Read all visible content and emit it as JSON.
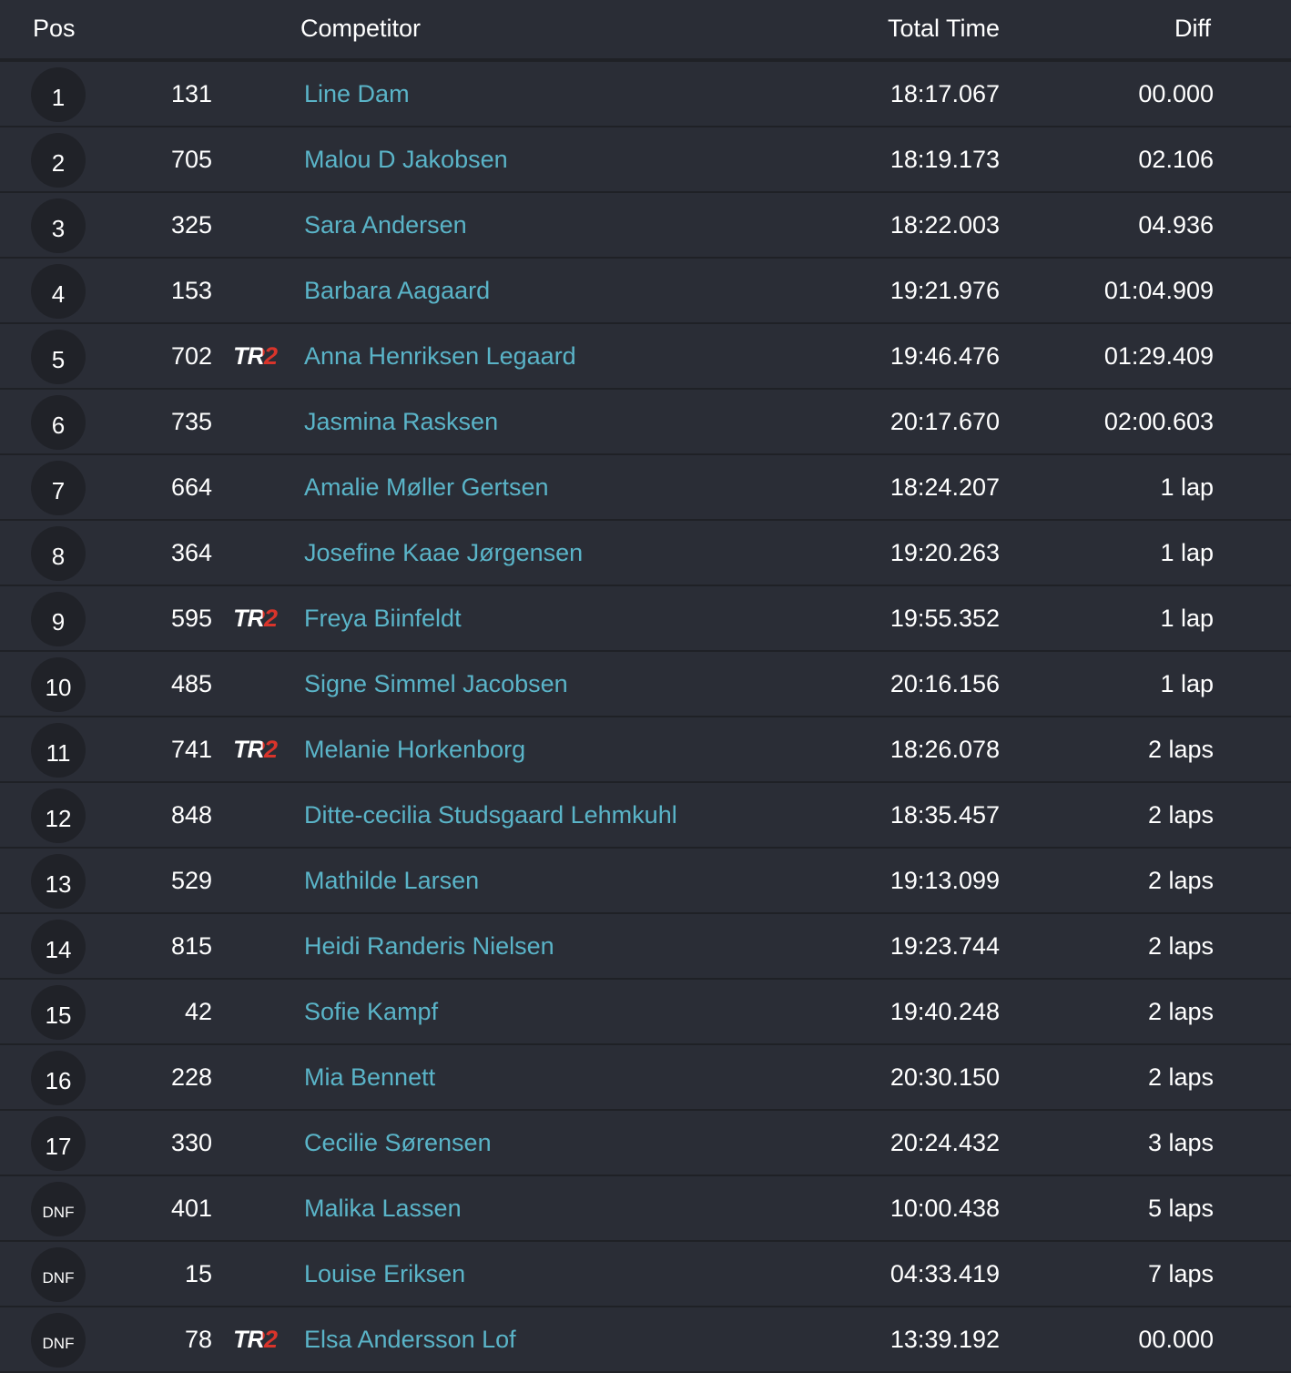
{
  "header": {
    "pos": "Pos",
    "competitor": "Competitor",
    "total_time": "Total Time",
    "diff": "Diff"
  },
  "colors": {
    "background": "#2a2d36",
    "name_link": "#5ab4c8",
    "badge_red": "#d9342b"
  },
  "rows": [
    {
      "pos": "1",
      "number": "131",
      "badge": "",
      "name": "Line Dam",
      "time": "18:17.067",
      "diff": "00.000"
    },
    {
      "pos": "2",
      "number": "705",
      "badge": "",
      "name": "Malou D Jakobsen",
      "time": "18:19.173",
      "diff": "02.106"
    },
    {
      "pos": "3",
      "number": "325",
      "badge": "",
      "name": "Sara Andersen",
      "time": "18:22.003",
      "diff": "04.936"
    },
    {
      "pos": "4",
      "number": "153",
      "badge": "",
      "name": "Barbara Aagaard",
      "time": "19:21.976",
      "diff": "01:04.909"
    },
    {
      "pos": "5",
      "number": "702",
      "badge": "TR2",
      "name": "Anna Henriksen Legaard",
      "time": "19:46.476",
      "diff": "01:29.409"
    },
    {
      "pos": "6",
      "number": "735",
      "badge": "",
      "name": "Jasmina Rasksen",
      "time": "20:17.670",
      "diff": "02:00.603"
    },
    {
      "pos": "7",
      "number": "664",
      "badge": "",
      "name": "Amalie Møller Gertsen",
      "time": "18:24.207",
      "diff": "1 lap"
    },
    {
      "pos": "8",
      "number": "364",
      "badge": "",
      "name": "Josefine Kaae Jørgensen",
      "time": "19:20.263",
      "diff": "1 lap"
    },
    {
      "pos": "9",
      "number": "595",
      "badge": "TR2",
      "name": "Freya Biinfeldt",
      "time": "19:55.352",
      "diff": "1 lap"
    },
    {
      "pos": "10",
      "number": "485",
      "badge": "",
      "name": "Signe Simmel Jacobsen",
      "time": "20:16.156",
      "diff": "1 lap"
    },
    {
      "pos": "11",
      "number": "741",
      "badge": "TR2",
      "name": "Melanie Horkenborg",
      "time": "18:26.078",
      "diff": "2 laps"
    },
    {
      "pos": "12",
      "number": "848",
      "badge": "",
      "name": "Ditte-cecilia Studsgaard Lehmkuhl",
      "time": "18:35.457",
      "diff": "2 laps"
    },
    {
      "pos": "13",
      "number": "529",
      "badge": "",
      "name": "Mathilde Larsen",
      "time": "19:13.099",
      "diff": "2 laps"
    },
    {
      "pos": "14",
      "number": "815",
      "badge": "",
      "name": "Heidi Randeris Nielsen",
      "time": "19:23.744",
      "diff": "2 laps"
    },
    {
      "pos": "15",
      "number": "42",
      "badge": "",
      "name": "Sofie Kampf",
      "time": "19:40.248",
      "diff": "2 laps"
    },
    {
      "pos": "16",
      "number": "228",
      "badge": "",
      "name": "Mia Bennett",
      "time": "20:30.150",
      "diff": "2 laps"
    },
    {
      "pos": "17",
      "number": "330",
      "badge": "",
      "name": "Cecilie Sørensen",
      "time": "20:24.432",
      "diff": "3 laps"
    },
    {
      "pos": "DNF",
      "number": "401",
      "badge": "",
      "name": "Malika Lassen",
      "time": "10:00.438",
      "diff": "5 laps"
    },
    {
      "pos": "DNF",
      "number": "15",
      "badge": "",
      "name": "Louise Eriksen",
      "time": "04:33.419",
      "diff": "7 laps"
    },
    {
      "pos": "DNF",
      "number": "78",
      "badge": "TR2",
      "name": "Elsa Andersson Lof",
      "time": "13:39.192",
      "diff": "00.000"
    }
  ]
}
